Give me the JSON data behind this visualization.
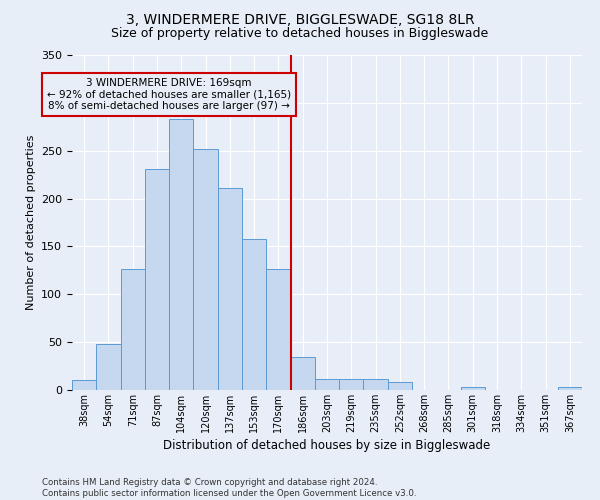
{
  "title": "3, WINDERMERE DRIVE, BIGGLESWADE, SG18 8LR",
  "subtitle": "Size of property relative to detached houses in Biggleswade",
  "xlabel": "Distribution of detached houses by size in Biggleswade",
  "ylabel": "Number of detached properties",
  "categories": [
    "38sqm",
    "54sqm",
    "71sqm",
    "87sqm",
    "104sqm",
    "120sqm",
    "137sqm",
    "153sqm",
    "170sqm",
    "186sqm",
    "203sqm",
    "219sqm",
    "235sqm",
    "252sqm",
    "268sqm",
    "285sqm",
    "301sqm",
    "318sqm",
    "334sqm",
    "351sqm",
    "367sqm"
  ],
  "values": [
    10,
    48,
    126,
    231,
    283,
    252,
    211,
    158,
    126,
    35,
    11,
    11,
    11,
    8,
    0,
    0,
    3,
    0,
    0,
    0,
    3
  ],
  "bar_color": "#c5d8f0",
  "bar_edge_color": "#5a9ad4",
  "vline_x": 8.5,
  "vline_color": "#cc0000",
  "annotation_text": "3 WINDERMERE DRIVE: 169sqm\n← 92% of detached houses are smaller (1,165)\n8% of semi-detached houses are larger (97) →",
  "annotation_box_color": "#cc0000",
  "bg_color": "#e8eef8",
  "grid_color": "#ffffff",
  "footnote": "Contains HM Land Registry data © Crown copyright and database right 2024.\nContains public sector information licensed under the Open Government Licence v3.0.",
  "ylim": [
    0,
    350
  ],
  "title_fontsize": 10,
  "subtitle_fontsize": 9
}
